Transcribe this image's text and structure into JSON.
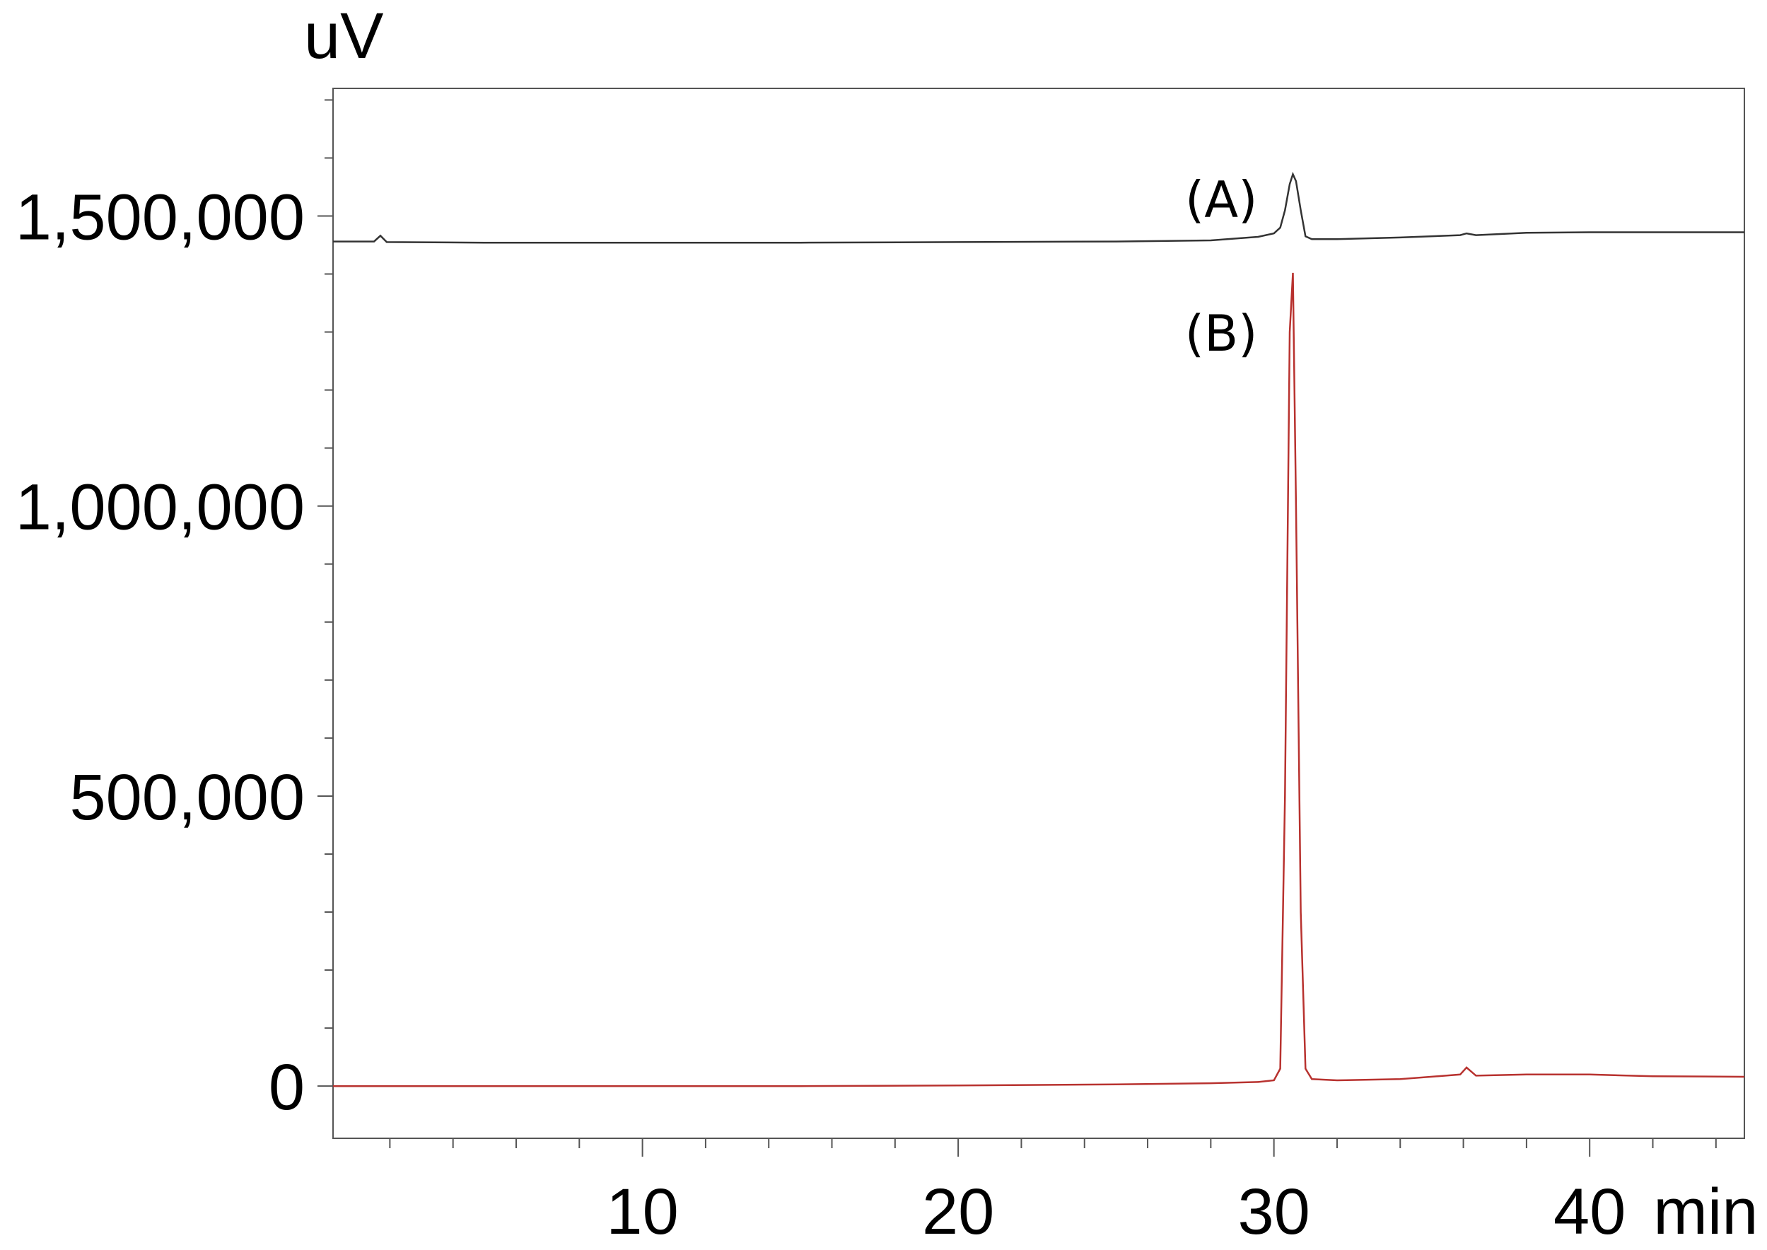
{
  "chart_data": {
    "type": "line",
    "x_label": "min",
    "y_label": "uV",
    "x": [
      0.2,
      1.5,
      1.7,
      1.9,
      5,
      10,
      15,
      20,
      25,
      28,
      29.5,
      30.0,
      30.2,
      30.35,
      30.5,
      30.6,
      30.7,
      30.85,
      31.0,
      31.2,
      32,
      34,
      35.9,
      36.1,
      36.4,
      38,
      40,
      42,
      44.9
    ],
    "series": [
      {
        "name": "(A)",
        "color": "#333333",
        "values": [
          1456000,
          1456000,
          1466000,
          1455000,
          1454000,
          1454000,
          1454000,
          1455000,
          1456000,
          1458000,
          1464000,
          1470000,
          1480000,
          1510000,
          1555000,
          1572000,
          1560000,
          1510000,
          1465000,
          1460000,
          1460000,
          1463000,
          1467000,
          1470000,
          1467000,
          1471000,
          1472000,
          1472000,
          1472000
        ]
      },
      {
        "name": "(B)",
        "color": "#b8322f",
        "values": [
          0,
          0,
          0,
          0,
          0,
          0,
          0,
          1000,
          3000,
          5000,
          7000,
          10000,
          30000,
          500000,
          1300000,
          1402000,
          1000000,
          300000,
          30000,
          12000,
          10000,
          12000,
          20000,
          32000,
          18000,
          20000,
          20000,
          17000,
          16000
        ]
      }
    ],
    "xlim": [
      0.2,
      44.9
    ],
    "ylim": [
      -90000,
      1720000
    ],
    "xticks": [
      10,
      20,
      30,
      40
    ],
    "yticks": [
      0,
      {
        "value": 500000,
        "label": "500,000"
      },
      {
        "value": 1000000,
        "label": "1,000,000"
      },
      {
        "value": 1500000,
        "label": "1,500,000"
      }
    ],
    "xminor_ticks": [
      2,
      4,
      6,
      8,
      12,
      14,
      16,
      18,
      22,
      24,
      26,
      28,
      32,
      34,
      36,
      38,
      42,
      44
    ],
    "yminor_ticks": [
      100000,
      200000,
      300000,
      400000,
      600000,
      700000,
      800000,
      900000,
      1100000,
      1200000,
      1300000,
      1400000,
      1600000,
      1700000
    ],
    "grid": false
  }
}
